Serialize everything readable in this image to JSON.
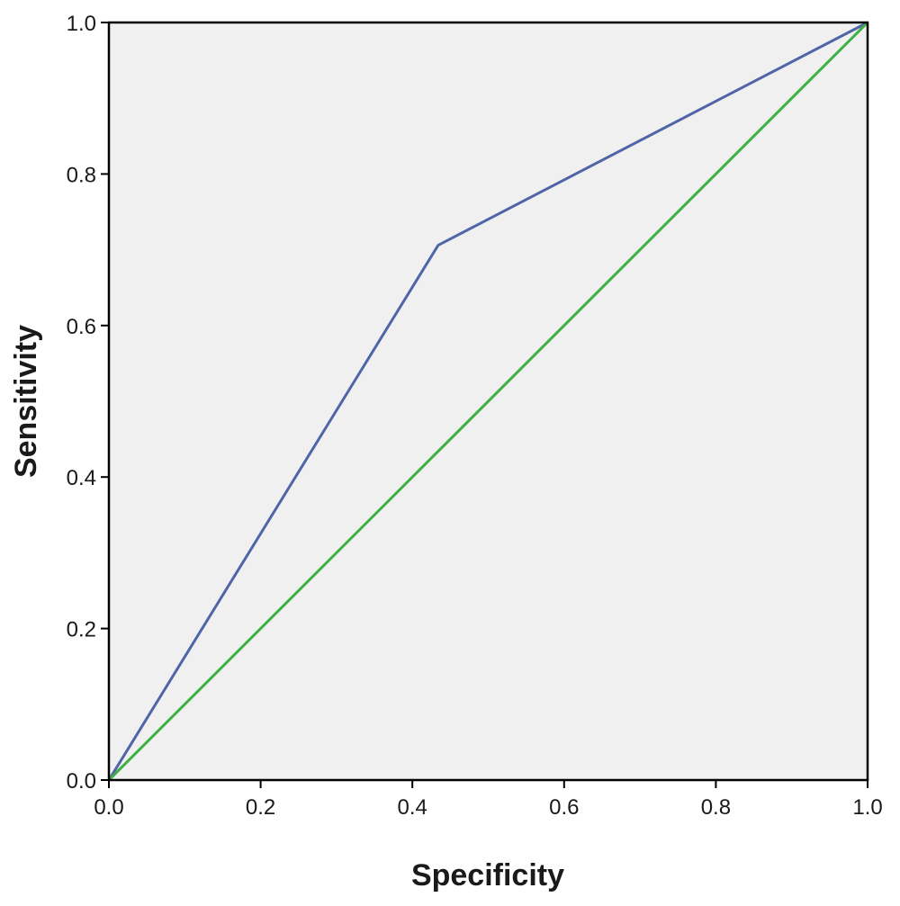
{
  "chart_data": {
    "type": "line",
    "title": "",
    "xlabel": "Specificity",
    "ylabel": "Sensitivity",
    "xlim": [
      0,
      1
    ],
    "ylim": [
      0,
      1
    ],
    "x_ticks": [
      "0.0",
      "0.2",
      "0.4",
      "0.6",
      "0.8",
      "1.0"
    ],
    "y_ticks": [
      "0.0",
      "0.2",
      "0.4",
      "0.6",
      "0.8",
      "1.0"
    ],
    "grid": false,
    "legend": "none",
    "plot_background": "#f0f0f0",
    "series": [
      {
        "color": "#5064a8",
        "points": [
          [
            0,
            0
          ],
          [
            0.434,
            0.706
          ],
          [
            1,
            1
          ]
        ]
      },
      {
        "color": "#3cb043",
        "points": [
          [
            0,
            0
          ],
          [
            1,
            1
          ]
        ]
      }
    ]
  }
}
